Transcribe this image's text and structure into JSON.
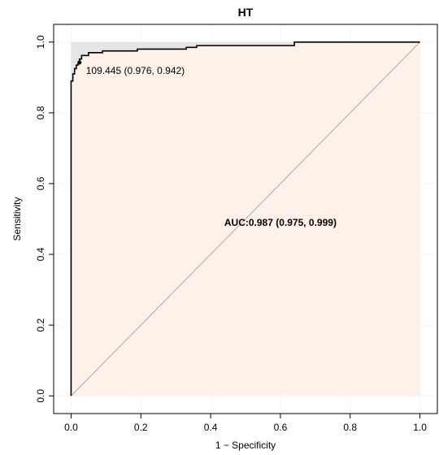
{
  "chart_data": {
    "type": "line",
    "title": "HT",
    "xlabel": "1 − Specificity",
    "ylabel": "Sensitivity",
    "xlim": [
      -0.05,
      1.05
    ],
    "ylim": [
      -0.05,
      1.05
    ],
    "x_ticks": [
      "0.0",
      "0.2",
      "0.4",
      "0.6",
      "0.8",
      "1.0"
    ],
    "y_ticks": [
      "0.0",
      "0.2",
      "0.4",
      "0.6",
      "0.8",
      "1.0"
    ],
    "grid": true,
    "series": [
      {
        "x": [
          0,
          0,
          0.005,
          0.005,
          0.01,
          0.01,
          0.015,
          0.015,
          0.02,
          0.02,
          0.024,
          0.024,
          0.03,
          0.03,
          0.05,
          0.05,
          0.09,
          0.09,
          0.19,
          0.19,
          0.33,
          0.33,
          0.36,
          0.36,
          0.64,
          0.64,
          1.0
        ],
        "y": [
          0,
          0.89,
          0.89,
          0.91,
          0.91,
          0.925,
          0.925,
          0.935,
          0.935,
          0.942,
          0.942,
          0.952,
          0.952,
          0.962,
          0.962,
          0.97,
          0.97,
          0.975,
          0.975,
          0.98,
          0.98,
          0.985,
          0.985,
          0.99,
          0.99,
          1.0,
          1.0
        ]
      }
    ],
    "diagonal_reference": [
      [
        0,
        0
      ],
      [
        1,
        1
      ]
    ],
    "threshold_point": {
      "x": 0.024,
      "y": 0.942,
      "label": "109.445 (0.976, 0.942)"
    },
    "auc_label": "AUC:0.987 (0.975, 0.999)",
    "colors": {
      "auc_fill": "#fdf1e9",
      "complement_fill": "#e5e5e5",
      "curve": "#000000",
      "diagonal": "#a9a9a9",
      "grid": "#eeeeee"
    }
  }
}
